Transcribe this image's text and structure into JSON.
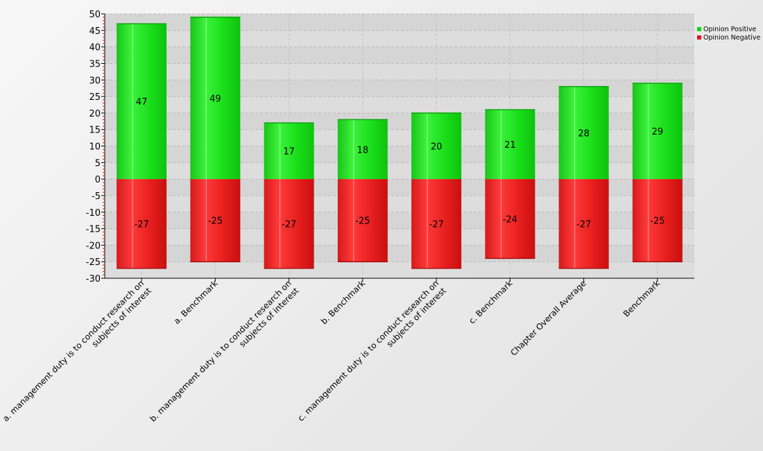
{
  "chart_data": {
    "type": "bar",
    "stacked": true,
    "categories": [
      [
        "a. management duty is to conduct research on",
        "subjects of interest"
      ],
      [
        "a. Benchmark"
      ],
      [
        "b. management duty is to conduct research on",
        "subjects of interest"
      ],
      [
        "b. Benchmark"
      ],
      [
        "c. management duty is to conduct research on",
        "subjects of interest"
      ],
      [
        "c. Benchmark"
      ],
      [
        "Chapter Overall Average"
      ],
      [
        "Benchmark"
      ]
    ],
    "series": [
      {
        "name": "Opinion Positive",
        "color": "#11d611",
        "values": [
          47,
          49,
          17,
          18,
          20,
          21,
          28,
          29
        ]
      },
      {
        "name": "Opinion Negative",
        "color": "#e01818",
        "values": [
          -27,
          -25,
          -27,
          -25,
          -27,
          -24,
          -27,
          -25
        ]
      }
    ],
    "ylim": [
      -30,
      50
    ],
    "yticks": [
      50,
      45,
      40,
      35,
      30,
      25,
      20,
      15,
      10,
      5,
      0,
      -5,
      -10,
      -15,
      -20,
      -25,
      -30
    ],
    "grid": true,
    "legend_position": "top-right",
    "title": "",
    "xlabel": "",
    "ylabel": ""
  }
}
